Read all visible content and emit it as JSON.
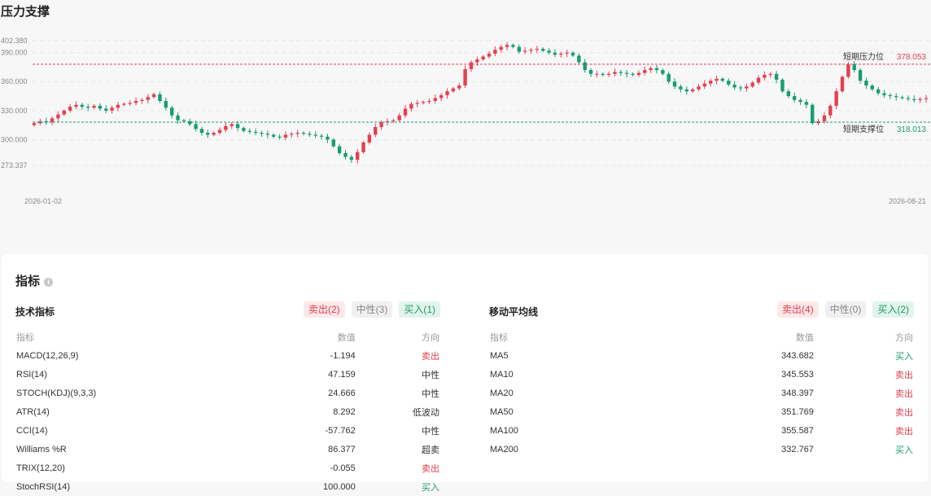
{
  "page_title": "压力支撑",
  "chart_data": {
    "type": "candlestick",
    "y_ticks": [
      "402.380",
      "390.000",
      "360.000",
      "330.000",
      "300.000",
      "273.337"
    ],
    "x_start_label": "2026-01-02",
    "x_end_label": "2026-08-21",
    "resistance": {
      "label": "短期压力位",
      "value": "378.053"
    },
    "support": {
      "label": "短期支撑位",
      "value": "318.013"
    },
    "closes": [
      317,
      319,
      318,
      322,
      326,
      330,
      334,
      336,
      334,
      333,
      335,
      332,
      330,
      333,
      336,
      337,
      338,
      340,
      341,
      344,
      347,
      340,
      333,
      325,
      320,
      319,
      316,
      311,
      307,
      305,
      307,
      310,
      314,
      316,
      312,
      309,
      308,
      307,
      306,
      305,
      303,
      302,
      305,
      306,
      307,
      306,
      305,
      304,
      303,
      300,
      293,
      286,
      282,
      279,
      287,
      297,
      305,
      313,
      318,
      319,
      320,
      325,
      332,
      337,
      338,
      339,
      340,
      343,
      346,
      350,
      353,
      356,
      373,
      380,
      383,
      386,
      389,
      393,
      396,
      398,
      396,
      391,
      392,
      393,
      394,
      392,
      390,
      388,
      389,
      390,
      387,
      380,
      372,
      368,
      368,
      367,
      368,
      370,
      369,
      368,
      367,
      369,
      372,
      374,
      372,
      368,
      360,
      355,
      352,
      350,
      352,
      355,
      358,
      361,
      363,
      361,
      357,
      354,
      353,
      355,
      359,
      364,
      367,
      368,
      362,
      350,
      345,
      341,
      339,
      336,
      317,
      319,
      325,
      335,
      350,
      365,
      378,
      372,
      361,
      356,
      352,
      348,
      346,
      345,
      344,
      343,
      342,
      341,
      342,
      343
    ]
  },
  "panel": {
    "title": "指标",
    "info_icon": "info-icon"
  },
  "technical": {
    "title": "技术指标",
    "badges": {
      "sell": "卖出(2)",
      "neutral": "中性(3)",
      "buy": "买入(1)"
    },
    "headers": {
      "name": "指标",
      "value": "数值",
      "direction": "方向"
    },
    "rows": [
      {
        "name": "MACD(12,26,9)",
        "value": "-1.194",
        "direction": "卖出",
        "kind": "sell"
      },
      {
        "name": "RSI(14)",
        "value": "47.159",
        "direction": "中性",
        "kind": "neutral"
      },
      {
        "name": "STOCH(KDJ)(9,3,3)",
        "value": "24.666",
        "direction": "中性",
        "kind": "neutral"
      },
      {
        "name": "ATR(14)",
        "value": "8.292",
        "direction": "低波动",
        "kind": "neutral"
      },
      {
        "name": "CCI(14)",
        "value": "-57.762",
        "direction": "中性",
        "kind": "neutral"
      },
      {
        "name": "Williams %R",
        "value": "86.377",
        "direction": "超卖",
        "kind": "neutral"
      },
      {
        "name": "TRIX(12,20)",
        "value": "-0.055",
        "direction": "卖出",
        "kind": "sell"
      },
      {
        "name": "StochRSI(14)",
        "value": "100.000",
        "direction": "买入",
        "kind": "buy"
      }
    ]
  },
  "moving_avg": {
    "title": "移动平均线",
    "badges": {
      "sell": "卖出(4)",
      "neutral": "中性(0)",
      "buy": "买入(2)"
    },
    "headers": {
      "name": "指标",
      "value": "数值",
      "direction": "方向"
    },
    "rows": [
      {
        "name": "MA5",
        "value": "343.682",
        "direction": "买入",
        "kind": "buy"
      },
      {
        "name": "MA10",
        "value": "345.553",
        "direction": "卖出",
        "kind": "sell"
      },
      {
        "name": "MA20",
        "value": "348.397",
        "direction": "卖出",
        "kind": "sell"
      },
      {
        "name": "MA50",
        "value": "351.769",
        "direction": "卖出",
        "kind": "sell"
      },
      {
        "name": "MA100",
        "value": "355.587",
        "direction": "卖出",
        "kind": "sell"
      },
      {
        "name": "MA200",
        "value": "332.767",
        "direction": "买入",
        "kind": "buy"
      }
    ]
  },
  "colors": {
    "up": "#e5404f",
    "down": "#1a9c72",
    "resistance": "#e5404f",
    "support": "#1a9c72"
  }
}
